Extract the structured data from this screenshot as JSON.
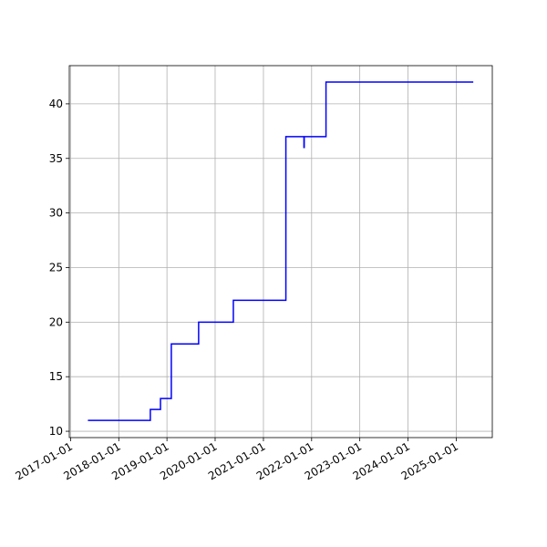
{
  "chart_data": {
    "type": "line",
    "drawstyle": "straight",
    "grid": true,
    "x": [
      "2017-05-12",
      "2018-08-28",
      "2018-08-28",
      "2018-11-13",
      "2018-11-13",
      "2019-02-03",
      "2019-02-03",
      "2019-08-29",
      "2019-08-29",
      "2020-05-18",
      "2020-05-18",
      "2021-06-20",
      "2021-06-20",
      "2021-11-04",
      "2021-11-04",
      "2021-11-06",
      "2021-11-06",
      "2022-04-20",
      "2022-04-20",
      "2025-05-10"
    ],
    "series": [
      {
        "color": "#0000ff",
        "values": [
          11,
          11,
          12,
          12,
          13,
          13,
          18,
          18,
          20,
          20,
          22,
          22,
          37,
          37,
          36,
          36,
          37,
          37,
          42,
          42
        ]
      }
    ],
    "xlim": [
      "2016-12-22",
      "2025-10-01"
    ],
    "xticks": [
      "2017-01-01",
      "2018-01-01",
      "2019-01-01",
      "2020-01-01",
      "2021-01-01",
      "2022-01-01",
      "2023-01-01",
      "2024-01-01",
      "2025-01-01"
    ],
    "ylim": [
      9.42,
      43.5
    ],
    "yticks": [
      10,
      15,
      20,
      25,
      30,
      35,
      40
    ]
  }
}
